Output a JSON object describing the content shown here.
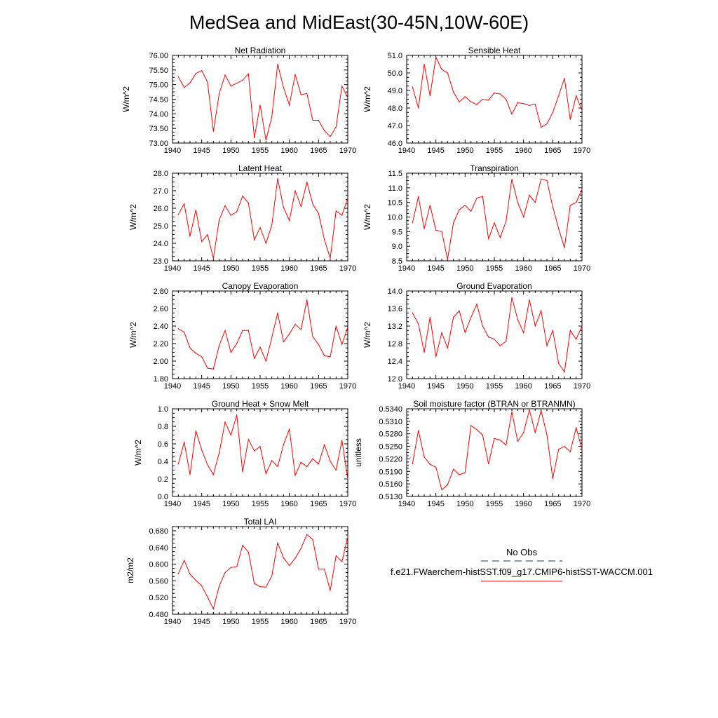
{
  "title": "MedSea and MidEast(30-45N,10W-60E)",
  "series_color": "#ff0000",
  "obs_color": "#1f2d8c",
  "legend": {
    "obs_label": "No Obs",
    "model_label": "f.e21.FWaerchem-histSST.f09_g17.CMIP6-histSST-WACCM.001"
  },
  "chart_data": [
    {
      "type": "line",
      "title": "Net Radiation",
      "xlabel": "",
      "ylabel": "W/m^2",
      "xlim": [
        1940,
        1970
      ],
      "ylim": [
        73.0,
        76.0
      ],
      "x_ticks": [
        "1940",
        "1945",
        "1950",
        "1955",
        "1960",
        "1965",
        "1970"
      ],
      "y_ticks": [
        "73.00",
        "73.50",
        "74.00",
        "74.50",
        "75.00",
        "75.50",
        "76.00"
      ],
      "x": [
        1941,
        1942,
        1943,
        1944,
        1945,
        1946,
        1947,
        1948,
        1949,
        1950,
        1951,
        1952,
        1953,
        1954,
        1955,
        1956,
        1957,
        1958,
        1959,
        1960,
        1961,
        1962,
        1963,
        1964,
        1965,
        1966,
        1967,
        1968,
        1969,
        1970
      ],
      "series": [
        {
          "values": [
            75.27,
            74.9,
            75.06,
            75.38,
            75.48,
            75.08,
            73.4,
            74.7,
            75.33,
            74.95,
            75.05,
            75.15,
            75.37,
            73.18,
            74.3,
            73.1,
            73.9,
            75.7,
            74.9,
            74.3,
            75.35,
            74.65,
            74.7,
            73.78,
            73.78,
            73.42,
            73.22,
            73.55,
            74.95,
            74.55
          ]
        }
      ]
    },
    {
      "type": "line",
      "title": "Sensible Heat",
      "xlabel": "",
      "ylabel": "W/m^2",
      "xlim": [
        1940,
        1970
      ],
      "ylim": [
        46.0,
        51.0
      ],
      "x_ticks": [
        "1940",
        "1945",
        "1950",
        "1955",
        "1960",
        "1965",
        "1970"
      ],
      "y_ticks": [
        "46.0",
        "47.0",
        "48.0",
        "49.0",
        "50.0",
        "51.0"
      ],
      "x": [
        1941,
        1942,
        1943,
        1944,
        1945,
        1946,
        1947,
        1948,
        1949,
        1950,
        1951,
        1952,
        1953,
        1954,
        1955,
        1956,
        1957,
        1958,
        1959,
        1960,
        1961,
        1962,
        1963,
        1964,
        1965,
        1966,
        1967,
        1968,
        1969,
        1970
      ],
      "series": [
        {
          "values": [
            49.2,
            48.0,
            50.5,
            48.7,
            50.9,
            50.2,
            50.0,
            48.9,
            48.35,
            48.65,
            48.35,
            48.2,
            48.5,
            48.45,
            48.85,
            48.8,
            48.5,
            47.65,
            48.3,
            48.25,
            48.15,
            48.2,
            46.9,
            47.1,
            47.75,
            48.7,
            49.7,
            47.35,
            48.7,
            47.85
          ]
        }
      ]
    },
    {
      "type": "line",
      "title": "Latent Heat",
      "xlabel": "",
      "ylabel": "W/m^2",
      "xlim": [
        1940,
        1970
      ],
      "ylim": [
        23.0,
        28.0
      ],
      "x_ticks": [
        "1940",
        "1945",
        "1950",
        "1955",
        "1960",
        "1965",
        "1970"
      ],
      "y_ticks": [
        "23.0",
        "24.0",
        "25.0",
        "26.0",
        "27.0",
        "28.0"
      ],
      "x": [
        1941,
        1942,
        1943,
        1944,
        1945,
        1946,
        1947,
        1948,
        1949,
        1950,
        1951,
        1952,
        1953,
        1954,
        1955,
        1956,
        1957,
        1958,
        1959,
        1960,
        1961,
        1962,
        1963,
        1964,
        1965,
        1966,
        1967,
        1968,
        1969,
        1970
      ],
      "series": [
        {
          "values": [
            25.65,
            26.25,
            24.4,
            25.9,
            24.1,
            24.5,
            23.15,
            25.35,
            26.15,
            25.6,
            25.8,
            26.7,
            26.3,
            24.2,
            24.9,
            24.0,
            25.05,
            27.7,
            26.05,
            25.3,
            27.0,
            26.1,
            27.5,
            26.25,
            25.7,
            24.2,
            23.15,
            25.85,
            25.6,
            26.6
          ]
        }
      ]
    },
    {
      "type": "line",
      "title": "Transpiration",
      "xlabel": "",
      "ylabel": "W/m^2",
      "xlim": [
        1940,
        1970
      ],
      "ylim": [
        8.5,
        11.5
      ],
      "x_ticks": [
        "1940",
        "1945",
        "1950",
        "1955",
        "1960",
        "1965",
        "1970"
      ],
      "y_ticks": [
        "8.5",
        "9.0",
        "9.5",
        "10.0",
        "10.5",
        "11.0",
        "11.5"
      ],
      "x": [
        1941,
        1942,
        1943,
        1944,
        1945,
        1946,
        1947,
        1948,
        1949,
        1950,
        1951,
        1952,
        1953,
        1954,
        1955,
        1956,
        1957,
        1958,
        1959,
        1960,
        1961,
        1962,
        1963,
        1964,
        1965,
        1966,
        1967,
        1968,
        1969,
        1970
      ],
      "series": [
        {
          "values": [
            9.8,
            10.7,
            9.6,
            10.4,
            9.55,
            9.5,
            8.55,
            9.8,
            10.25,
            10.4,
            10.2,
            10.65,
            10.7,
            9.25,
            9.8,
            9.3,
            9.85,
            11.3,
            10.5,
            10.0,
            10.75,
            10.5,
            11.3,
            11.25,
            10.35,
            9.6,
            8.95,
            10.4,
            10.5,
            10.95
          ]
        }
      ]
    },
    {
      "type": "line",
      "title": "Canopy Evaporation",
      "xlabel": "",
      "ylabel": "W/m^2",
      "xlim": [
        1940,
        1970
      ],
      "ylim": [
        1.8,
        2.8
      ],
      "x_ticks": [
        "1940",
        "1945",
        "1950",
        "1955",
        "1960",
        "1965",
        "1970"
      ],
      "y_ticks": [
        "1.80",
        "2.00",
        "2.20",
        "2.40",
        "2.60",
        "2.80"
      ],
      "x": [
        1941,
        1942,
        1943,
        1944,
        1945,
        1946,
        1947,
        1948,
        1949,
        1950,
        1951,
        1952,
        1953,
        1954,
        1955,
        1956,
        1957,
        1958,
        1959,
        1960,
        1961,
        1962,
        1963,
        1964,
        1965,
        1966,
        1967,
        1968,
        1969,
        1970
      ],
      "series": [
        {
          "values": [
            2.37,
            2.33,
            2.15,
            2.09,
            2.05,
            1.92,
            1.91,
            2.18,
            2.35,
            2.1,
            2.2,
            2.35,
            2.35,
            2.03,
            2.16,
            2.0,
            2.27,
            2.55,
            2.22,
            2.31,
            2.42,
            2.36,
            2.7,
            2.28,
            2.19,
            2.06,
            2.05,
            2.4,
            2.19,
            2.39
          ]
        }
      ]
    },
    {
      "type": "line",
      "title": "Ground Evaporation",
      "xlabel": "",
      "ylabel": "W/m^2",
      "xlim": [
        1940,
        1970
      ],
      "ylim": [
        12.0,
        14.0
      ],
      "x_ticks": [
        "1940",
        "1945",
        "1950",
        "1955",
        "1960",
        "1965",
        "1970"
      ],
      "y_ticks": [
        "12.0",
        "12.4",
        "12.8",
        "13.2",
        "13.6",
        "14.0"
      ],
      "x": [
        1941,
        1942,
        1943,
        1944,
        1945,
        1946,
        1947,
        1948,
        1949,
        1950,
        1951,
        1952,
        1953,
        1954,
        1955,
        1956,
        1957,
        1958,
        1959,
        1960,
        1961,
        1962,
        1963,
        1964,
        1965,
        1966,
        1967,
        1968,
        1969,
        1970
      ],
      "series": [
        {
          "values": [
            13.5,
            13.25,
            12.6,
            13.4,
            12.5,
            13.05,
            12.7,
            13.4,
            13.55,
            13.05,
            13.4,
            13.7,
            13.2,
            12.95,
            12.9,
            12.75,
            12.85,
            13.85,
            13.35,
            13.05,
            13.8,
            13.2,
            13.55,
            12.75,
            13.1,
            12.35,
            12.15,
            13.1,
            12.9,
            13.2
          ]
        }
      ]
    },
    {
      "type": "line",
      "title": "Ground Heat + Snow Melt",
      "xlabel": "",
      "ylabel": "W/m^2",
      "xlim": [
        1940,
        1970
      ],
      "ylim": [
        0.0,
        1.0
      ],
      "x_ticks": [
        "1940",
        "1945",
        "1950",
        "1955",
        "1960",
        "1965",
        "1970"
      ],
      "y_ticks": [
        "0.0",
        "0.2",
        "0.4",
        "0.6",
        "0.8",
        "1.0"
      ],
      "x": [
        1941,
        1942,
        1943,
        1944,
        1945,
        1946,
        1947,
        1948,
        1949,
        1950,
        1951,
        1952,
        1953,
        1954,
        1955,
        1956,
        1957,
        1958,
        1959,
        1960,
        1961,
        1962,
        1963,
        1964,
        1965,
        1966,
        1967,
        1968,
        1969,
        1970
      ],
      "series": [
        {
          "values": [
            0.37,
            0.62,
            0.25,
            0.75,
            0.53,
            0.36,
            0.25,
            0.5,
            0.85,
            0.7,
            0.93,
            0.28,
            0.65,
            0.52,
            0.57,
            0.26,
            0.41,
            0.34,
            0.59,
            0.77,
            0.24,
            0.39,
            0.34,
            0.43,
            0.37,
            0.59,
            0.4,
            0.3,
            0.64,
            0.2
          ]
        }
      ]
    },
    {
      "type": "line",
      "title": "Soil moisture factor (BTRAN or BTRANMN)",
      "xlabel": "",
      "ylabel": "unitless",
      "xlim": [
        1940,
        1970
      ],
      "ylim": [
        0.513,
        0.534
      ],
      "x_ticks": [
        "1940",
        "1945",
        "1950",
        "1955",
        "1960",
        "1965",
        "1970"
      ],
      "y_ticks": [
        "0.5130",
        "0.5160",
        "0.5190",
        "0.5220",
        "0.5250",
        "0.5280",
        "0.5310",
        "0.5340"
      ],
      "x": [
        1941,
        1942,
        1943,
        1944,
        1945,
        1946,
        1947,
        1948,
        1949,
        1950,
        1951,
        1952,
        1953,
        1954,
        1955,
        1956,
        1957,
        1958,
        1959,
        1960,
        1961,
        1962,
        1963,
        1964,
        1965,
        1966,
        1967,
        1968,
        1969,
        1970
      ],
      "series": [
        {
          "values": [
            0.5208,
            0.5288,
            0.5225,
            0.5207,
            0.52,
            0.5146,
            0.5158,
            0.5195,
            0.5182,
            0.5187,
            0.53,
            0.529,
            0.5277,
            0.5208,
            0.5269,
            0.5265,
            0.5253,
            0.5333,
            0.5262,
            0.5283,
            0.5337,
            0.5283,
            0.5336,
            0.5278,
            0.5173,
            0.5243,
            0.525,
            0.5237,
            0.5295,
            0.5243
          ]
        }
      ]
    },
    {
      "type": "line",
      "title": "Total LAI",
      "xlabel": "",
      "ylabel": "m2/m2",
      "xlim": [
        1940,
        1970
      ],
      "ylim": [
        0.48,
        0.69
      ],
      "x_ticks": [
        "1940",
        "1945",
        "1950",
        "1955",
        "1960",
        "1965",
        "1970"
      ],
      "y_ticks": [
        "0.480",
        "0.520",
        "0.560",
        "0.600",
        "0.640",
        "0.680"
      ],
      "x": [
        1941,
        1942,
        1943,
        1944,
        1945,
        1946,
        1947,
        1948,
        1949,
        1950,
        1951,
        1952,
        1953,
        1954,
        1955,
        1956,
        1957,
        1958,
        1959,
        1960,
        1961,
        1962,
        1963,
        1964,
        1965,
        1966,
        1967,
        1968,
        1969,
        1970
      ],
      "series": [
        {
          "values": [
            0.577,
            0.609,
            0.576,
            0.561,
            0.548,
            0.521,
            0.493,
            0.548,
            0.58,
            0.592,
            0.594,
            0.645,
            0.629,
            0.554,
            0.546,
            0.545,
            0.572,
            0.651,
            0.615,
            0.597,
            0.614,
            0.638,
            0.671,
            0.659,
            0.588,
            0.588,
            0.537,
            0.62,
            0.606,
            0.665
          ]
        }
      ]
    }
  ]
}
